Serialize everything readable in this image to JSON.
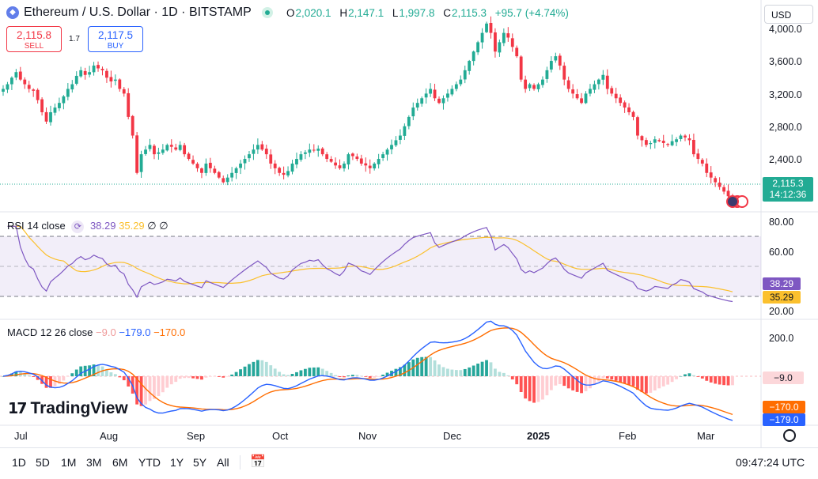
{
  "header": {
    "symbol_icon": "ethereum-icon",
    "title": "Ethereum / U.S. Dollar · 1D · BITSTAMP",
    "ohlc": [
      {
        "key": "O",
        "value": "2,020.1"
      },
      {
        "key": "H",
        "value": "2,147.1"
      },
      {
        "key": "L",
        "value": "1,997.8"
      },
      {
        "key": "C",
        "value": "2,115.3"
      }
    ],
    "change": "+95.7 (+4.74%)",
    "currency": "USD"
  },
  "trade": {
    "sell_price": "2,115.8",
    "sell_label": "SELL",
    "spread": "1.7",
    "buy_price": "2,117.5",
    "buy_label": "BUY"
  },
  "price_axis": {
    "ticks": [
      "4,000.0",
      "3,600.0",
      "3,200.0",
      "2,800.0",
      "2,400.0"
    ],
    "last_price": "2,115.3",
    "countdown": "14:12:36"
  },
  "rsi": {
    "name": "RSI 14 close",
    "value": "38.29",
    "ma_value": "35.29",
    "extras": [
      "∅",
      "∅"
    ],
    "ticks": [
      "80.00",
      "60.00",
      "20.00"
    ]
  },
  "macd": {
    "name": "MACD 12 26 close",
    "hist_value": "−9.0",
    "macd_value": "−179.0",
    "signal_value": "−170.0",
    "ticks": [
      "200.0"
    ],
    "tag_hist": "−9.0",
    "tag_signal": "−170.0",
    "tag_macd": "−179.0"
  },
  "x_axis": [
    "Jul",
    "Aug",
    "Sep",
    "Oct",
    "Nov",
    "Dec",
    "2025",
    "Feb",
    "Mar"
  ],
  "logo": "TradingView",
  "ranges": [
    "1D",
    "5D",
    "1M",
    "3M",
    "6M",
    "YTD",
    "1Y",
    "5Y",
    "All"
  ],
  "clock": "09:47:24 UTC",
  "colors": {
    "up": "#22ab94",
    "down": "#f23645",
    "rsi": "#7e57c2",
    "rsi_ma": "#fbc02d",
    "macd": "#2962ff",
    "signal": "#ff6d00"
  },
  "chart_data": {
    "type": "candlestick",
    "series": [
      {
        "name": "ETHUSD",
        "close": [
          3300,
          3350,
          3420,
          3480,
          3400,
          3350,
          3300,
          3280,
          3180,
          3050,
          2950,
          3050,
          3100,
          3150,
          3220,
          3300,
          3350,
          3440,
          3500,
          3450,
          3480,
          3550,
          3520,
          3500,
          3420,
          3380,
          3400,
          3300,
          3250,
          3000,
          2800,
          2400,
          2600,
          2650,
          2700,
          2600,
          2620,
          2650,
          2700,
          2680,
          2650,
          2700,
          2600,
          2550,
          2500,
          2450,
          2400,
          2500,
          2450,
          2400,
          2350,
          2300,
          2350,
          2400,
          2450,
          2500,
          2550,
          2600,
          2650,
          2700,
          2650,
          2600,
          2500,
          2450,
          2400,
          2380,
          2420,
          2500,
          2550,
          2600,
          2620,
          2650,
          2640,
          2660,
          2600,
          2550,
          2520,
          2480,
          2450,
          2500,
          2600,
          2580,
          2550,
          2500,
          2480,
          2450,
          2500,
          2550,
          2600,
          2650,
          2700,
          2750,
          2800,
          2900,
          3000,
          3100,
          3150,
          3200,
          3250,
          3300,
          3200,
          3150,
          3200,
          3250,
          3300,
          3350,
          3400,
          3500,
          3600,
          3700,
          3800,
          3900,
          4000,
          3900,
          3700,
          3800,
          3900,
          3850,
          3750,
          3650,
          3400,
          3300,
          3350,
          3300,
          3350,
          3400,
          3500,
          3600,
          3650,
          3550,
          3400,
          3300,
          3250,
          3200,
          3150,
          3250,
          3300,
          3350,
          3400,
          3450,
          3300,
          3250,
          3200,
          3150,
          3100,
          3050,
          3000,
          2800,
          2750,
          2700,
          2720,
          2760,
          2740,
          2720,
          2700,
          2740,
          2760,
          2800,
          2780,
          2750,
          2600,
          2550,
          2500,
          2400,
          2350,
          2300,
          2250,
          2200,
          2150,
          2115.3
        ]
      }
    ],
    "y_ticks": [
      "4,000.0",
      "3,600.0",
      "3,200.0",
      "2,800.0",
      "2,400.0"
    ],
    "x_ticks": [
      "Jul",
      "Aug",
      "Sep",
      "Oct",
      "Nov",
      "Dec",
      "2025",
      "Feb",
      "Mar"
    ],
    "ylim": [
      2000,
      4100
    ]
  }
}
